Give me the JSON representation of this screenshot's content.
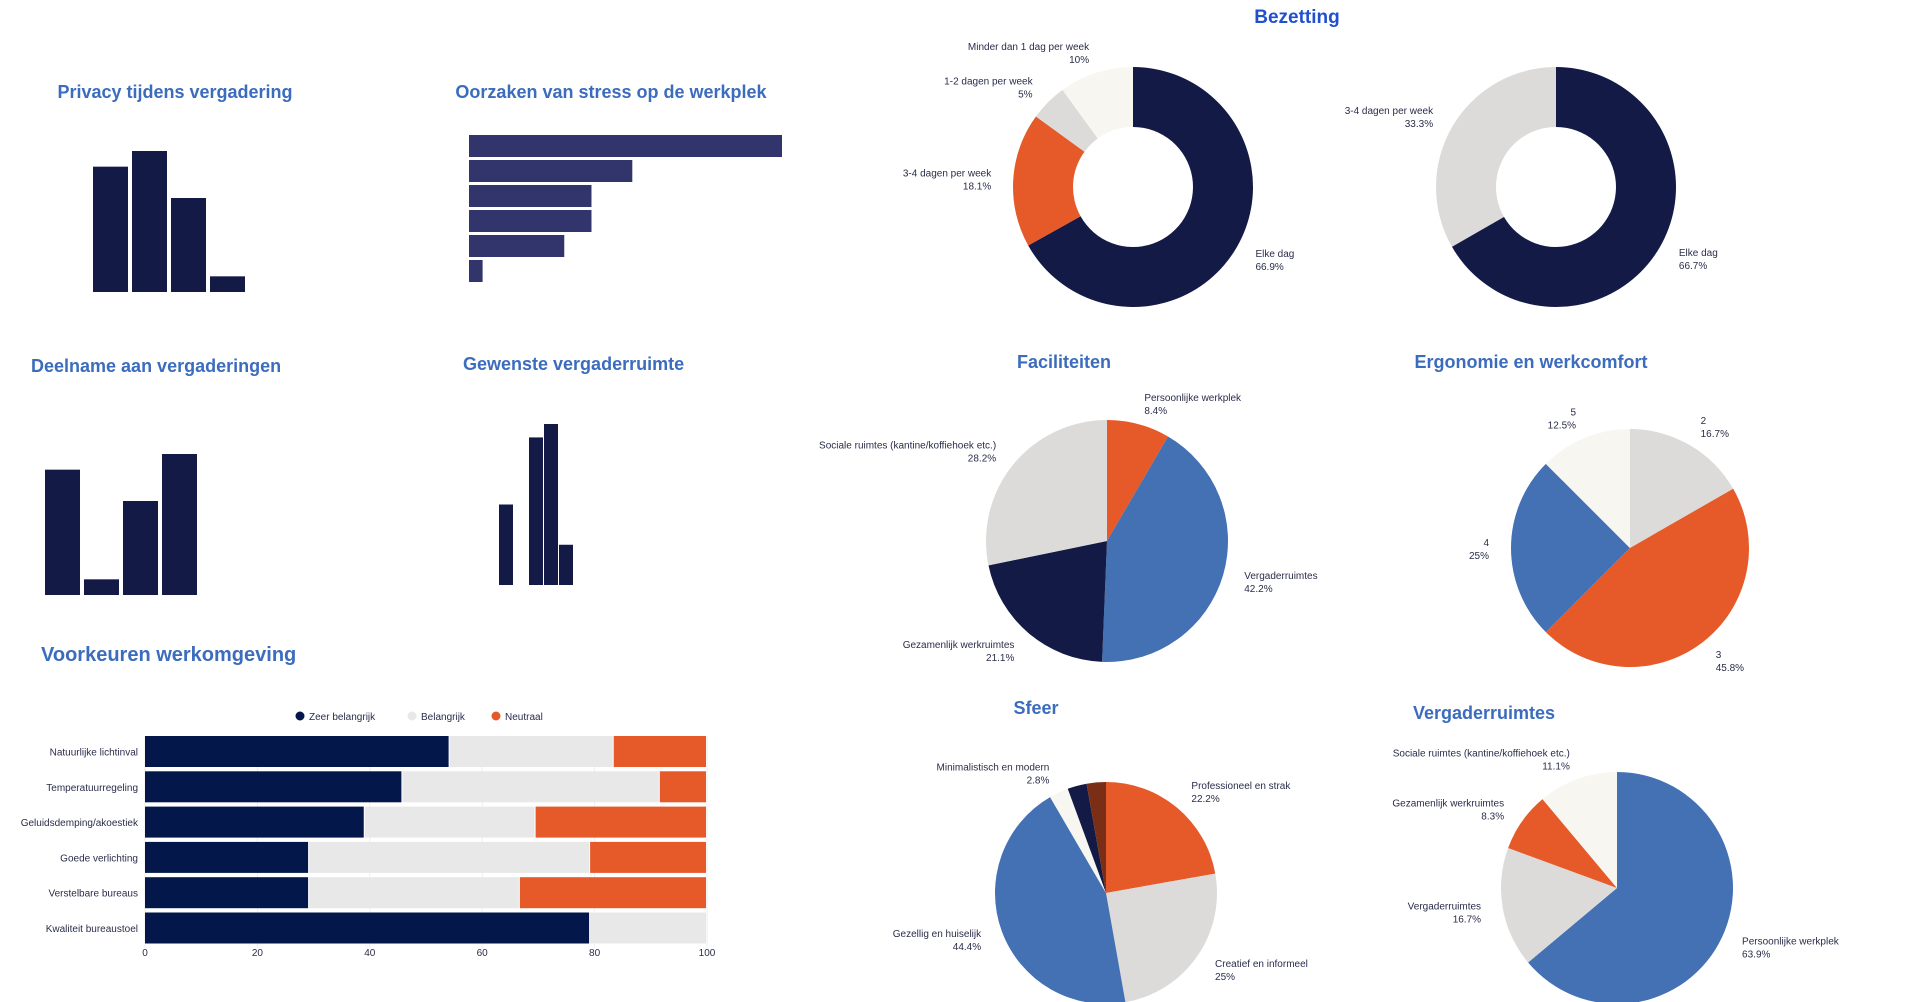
{
  "colors": {
    "navy": "#131a45",
    "stress": "#32356b",
    "orange": "#e55a28",
    "gray": "#dcdbd9",
    "offwhite": "#f8f6f0",
    "blue": "#4470b4",
    "brown": "#7a2e16",
    "stack_navy": "#04174a",
    "stack_light": "#e8e8e8"
  },
  "chart_data": [
    {
      "id": "privacy",
      "type": "bar",
      "title": "Privacy tijdens vergadering",
      "values": [
        8,
        9,
        6,
        1
      ]
    },
    {
      "id": "stress",
      "type": "bar",
      "orientation": "horizontal",
      "title": "Oorzaken van stress op de werkplek",
      "values": [
        23,
        12,
        9,
        9,
        7,
        1
      ]
    },
    {
      "id": "deelname",
      "type": "bar",
      "title": "Deelname aan vergaderingen",
      "values": [
        8,
        1,
        6,
        9
      ]
    },
    {
      "id": "gewenste",
      "type": "bar",
      "title": "Gewenste vergaderruimte",
      "values": [
        6,
        0,
        11,
        12,
        3
      ]
    },
    {
      "id": "voorkeuren",
      "type": "bar",
      "orientation": "horizontal",
      "stacked": true,
      "title": "Voorkeuren werkomgeving",
      "categories": [
        "Natuurlijke lichtinval",
        "Temperatuurregeling",
        "Geluidsdemping/akoestiek",
        "Goede verlichting",
        "Verstelbare bureaus",
        "Kwaliteit bureaustoel"
      ],
      "series": [
        {
          "name": "Zeer belangrijk",
          "color": "#04174a",
          "values": [
            54.2,
            45.8,
            39.1,
            29.2,
            29.2,
            79.2
          ]
        },
        {
          "name": "Belangrijk",
          "color": "#e8e8e8",
          "values": [
            29.2,
            45.8,
            30.4,
            50,
            37.5,
            20.8
          ]
        },
        {
          "name": "Neutraal",
          "color": "#e55a28",
          "values": [
            16.6,
            8.4,
            30.5,
            20.8,
            33.3,
            0
          ]
        }
      ],
      "xlim": [
        0,
        100
      ],
      "xticks": [
        "0",
        "20",
        "40",
        "60",
        "80",
        "100"
      ],
      "legend": "top"
    },
    {
      "id": "bezetting1",
      "type": "pie",
      "donut": true,
      "title": "Bezetting",
      "slices": [
        {
          "label": "Elke dag",
          "pct": "66.9%",
          "value": 66.9,
          "color": "#131a45"
        },
        {
          "label": "3-4 dagen per week",
          "pct": "18.1%",
          "value": 18.1,
          "color": "#e55a28"
        },
        {
          "label": "1-2 dagen per week",
          "pct": "5%",
          "value": 5,
          "color": "#dcdbd9"
        },
        {
          "label": "Minder dan 1 dag per week",
          "pct": "10%",
          "value": 10,
          "color": "#f8f6f0"
        }
      ]
    },
    {
      "id": "bezetting2",
      "type": "pie",
      "donut": true,
      "slices": [
        {
          "label": "Elke dag",
          "pct": "66.7%",
          "value": 66.7,
          "color": "#131a45"
        },
        {
          "label": "3-4 dagen per week",
          "pct": "33.3%",
          "value": 33.3,
          "color": "#dcdbd9"
        }
      ]
    },
    {
      "id": "faciliteiten",
      "type": "pie",
      "title": "Faciliteiten",
      "slices": [
        {
          "label": "Persoonlijke werkplek",
          "pct": "8.4%",
          "value": 8.4,
          "color": "#e55a28"
        },
        {
          "label": "Vergaderruimtes",
          "pct": "42.2%",
          "value": 42.2,
          "color": "#4470b4"
        },
        {
          "label": "Gezamenlijk werkruimtes",
          "pct": "21.1%",
          "value": 21.1,
          "color": "#131a45"
        },
        {
          "label": "Sociale ruimtes (kantine/koffiehoek etc.)",
          "pct": "28.2%",
          "value": 28.2,
          "color": "#dcdbd9"
        }
      ]
    },
    {
      "id": "ergonomie",
      "type": "pie",
      "title": "Ergonomie en werkcomfort",
      "slices": [
        {
          "label": "2",
          "pct": "16.7%",
          "value": 16.7,
          "color": "#dcdbd9"
        },
        {
          "label": "3",
          "pct": "45.8%",
          "value": 45.8,
          "color": "#e55a28"
        },
        {
          "label": "4",
          "pct": "25%",
          "value": 25,
          "color": "#4470b4"
        },
        {
          "label": "5",
          "pct": "12.5%",
          "value": 12.5,
          "color": "#f8f6f0"
        }
      ]
    },
    {
      "id": "sfeer",
      "type": "pie",
      "title": "Sfeer",
      "slices": [
        {
          "label": "Professioneel en strak",
          "pct": "22.2%",
          "value": 22.2,
          "color": "#e55a28"
        },
        {
          "label": "Creatief en informeel",
          "pct": "25%",
          "value": 25,
          "color": "#dcdbd9"
        },
        {
          "label": "Gezellig en huiselijk",
          "pct": "44.4%",
          "value": 44.4,
          "color": "#4470b4"
        },
        {
          "label": "Minimalistisch en modern",
          "pct": "2.8%",
          "value": 2.8,
          "color": "#f8f6f0"
        },
        {
          "value": 2.8,
          "color": "#131a45"
        },
        {
          "value": 2.8,
          "color": "#7a2e16"
        }
      ]
    },
    {
      "id": "vergaderruimtes",
      "type": "pie",
      "title": "Vergaderruimtes",
      "slices": [
        {
          "label": "Persoonlijke werkplek",
          "pct": "63.9%",
          "value": 63.9,
          "color": "#4470b4"
        },
        {
          "label": "Vergaderruimtes",
          "pct": "16.7%",
          "value": 16.7,
          "color": "#dcdbd9"
        },
        {
          "label": "Gezamenlijk werkruimtes",
          "pct": "8.3%",
          "value": 8.3,
          "color": "#e55a28"
        },
        {
          "label": "Sociale ruimtes (kantine/koffiehoek etc.)",
          "pct": "11.1%",
          "value": 11.1,
          "color": "#f8f6f0"
        }
      ]
    }
  ]
}
